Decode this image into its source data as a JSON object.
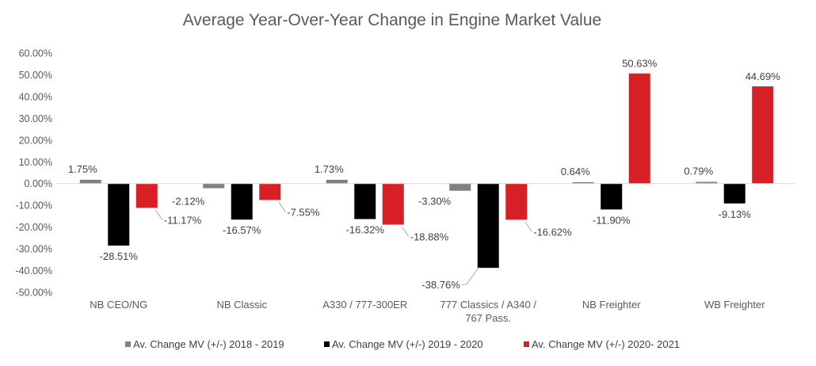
{
  "chart_data": {
    "type": "bar",
    "title": "Average Year-Over-Year  Change in Engine Market Value",
    "xlabel": "",
    "ylabel": "",
    "ylim": [
      -50,
      60
    ],
    "yticks": [
      "60.00%",
      "50.00%",
      "40.00%",
      "30.00%",
      "20.00%",
      "10.00%",
      "0.00%",
      "-10.00%",
      "-20.00%",
      "-30.00%",
      "-40.00%",
      "-50.00%"
    ],
    "categories": [
      "NB CEO/NG",
      "NB Classic",
      "A330 / 777-300ER",
      "777 Classics / A340 / 767 Pass.",
      "NB Freighter",
      "WB Freighter"
    ],
    "grid": false,
    "legend_position": "bottom",
    "series": [
      {
        "name": "Av. Change MV (+/-) 2018 - 2019",
        "color": "#808080",
        "values": [
          1.75,
          -2.12,
          1.73,
          -3.3,
          0.64,
          0.79
        ],
        "labels": [
          "1.75%",
          "-2.12%",
          "1.73%",
          "-3.30%",
          "0.64%",
          "0.79%"
        ]
      },
      {
        "name": "Av. Change MV (+/-) 2019 - 2020",
        "color": "#000000",
        "values": [
          -28.51,
          -16.57,
          -16.32,
          -38.76,
          -11.9,
          -9.13
        ],
        "labels": [
          "-28.51%",
          "-16.57%",
          "-16.32%",
          "-38.76%",
          "-11.90%",
          "-9.13%"
        ]
      },
      {
        "name": "Av. Change MV (+/-) 2020- 2021",
        "color": "#d71f26",
        "values": [
          -11.17,
          -7.55,
          -18.88,
          -16.62,
          50.63,
          44.69
        ],
        "labels": [
          "-11.17%",
          "-7.55%",
          "-18.88%",
          "-16.62%",
          "50.63%",
          "44.69%"
        ]
      }
    ]
  }
}
